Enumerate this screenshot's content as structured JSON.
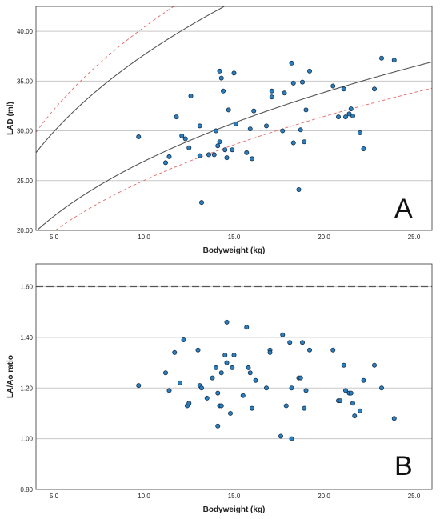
{
  "chart_data": [
    {
      "type": "scatter",
      "panel_label": "A",
      "xlabel": "Bodyweight (kg)",
      "ylabel": "LAD (ml)",
      "xlim": [
        4,
        26
      ],
      "ylim": [
        20,
        42.5
      ],
      "x_ticks": [
        5,
        10,
        15,
        20,
        25
      ],
      "x_tick_labels": [
        "5.0",
        "10.0",
        "15.0",
        "20.0",
        "25.0"
      ],
      "y_ticks": [
        20,
        25,
        30,
        35,
        40
      ],
      "y_tick_labels": [
        "20.00",
        "25.00",
        "30.00",
        "35.00",
        "40.00"
      ],
      "grid": "horizontal",
      "curves": [
        {
          "style": "solid",
          "color": "#555555",
          "a": 17.6,
          "b": 0.33
        },
        {
          "style": "solid",
          "color": "#555555",
          "a": 12.6,
          "b": 0.33
        },
        {
          "style": "dashed",
          "color": "#e36a6a",
          "a": 18.9,
          "b": 0.33
        },
        {
          "style": "dashed",
          "color": "#e36a6a",
          "a": 11.7,
          "b": 0.33
        }
      ],
      "points": [
        {
          "x": 9.7,
          "y": 29.4
        },
        {
          "x": 11.2,
          "y": 26.8
        },
        {
          "x": 11.4,
          "y": 27.4
        },
        {
          "x": 11.8,
          "y": 31.4
        },
        {
          "x": 12.1,
          "y": 29.5
        },
        {
          "x": 12.3,
          "y": 29.2
        },
        {
          "x": 12.5,
          "y": 28.3
        },
        {
          "x": 12.6,
          "y": 33.5
        },
        {
          "x": 13.1,
          "y": 27.5
        },
        {
          "x": 13.1,
          "y": 30.5
        },
        {
          "x": 13.2,
          "y": 22.8
        },
        {
          "x": 13.6,
          "y": 27.6
        },
        {
          "x": 13.9,
          "y": 27.6
        },
        {
          "x": 14.0,
          "y": 30.0
        },
        {
          "x": 14.1,
          "y": 28.5
        },
        {
          "x": 14.2,
          "y": 28.9
        },
        {
          "x": 14.2,
          "y": 36.0
        },
        {
          "x": 14.3,
          "y": 35.3
        },
        {
          "x": 14.4,
          "y": 34.0
        },
        {
          "x": 14.5,
          "y": 28.1
        },
        {
          "x": 14.6,
          "y": 27.3
        },
        {
          "x": 14.7,
          "y": 32.1
        },
        {
          "x": 14.9,
          "y": 28.1
        },
        {
          "x": 15.0,
          "y": 35.8
        },
        {
          "x": 15.1,
          "y": 30.7
        },
        {
          "x": 15.7,
          "y": 27.8
        },
        {
          "x": 15.9,
          "y": 30.2
        },
        {
          "x": 16.0,
          "y": 27.2
        },
        {
          "x": 16.1,
          "y": 32.0
        },
        {
          "x": 16.8,
          "y": 30.5
        },
        {
          "x": 17.1,
          "y": 34.0
        },
        {
          "x": 17.1,
          "y": 33.4
        },
        {
          "x": 17.7,
          "y": 30.0
        },
        {
          "x": 17.8,
          "y": 33.8
        },
        {
          "x": 18.2,
          "y": 36.8
        },
        {
          "x": 18.3,
          "y": 28.8
        },
        {
          "x": 18.3,
          "y": 34.8
        },
        {
          "x": 18.6,
          "y": 24.1
        },
        {
          "x": 18.7,
          "y": 30.1
        },
        {
          "x": 18.8,
          "y": 34.9
        },
        {
          "x": 18.9,
          "y": 28.9
        },
        {
          "x": 19.0,
          "y": 32.1
        },
        {
          "x": 19.2,
          "y": 36.0
        },
        {
          "x": 20.5,
          "y": 34.5
        },
        {
          "x": 20.8,
          "y": 31.4
        },
        {
          "x": 21.1,
          "y": 34.2
        },
        {
          "x": 21.2,
          "y": 31.4
        },
        {
          "x": 21.4,
          "y": 31.7
        },
        {
          "x": 21.5,
          "y": 32.2
        },
        {
          "x": 21.6,
          "y": 31.5
        },
        {
          "x": 22.0,
          "y": 29.8
        },
        {
          "x": 22.2,
          "y": 28.2
        },
        {
          "x": 22.8,
          "y": 34.2
        },
        {
          "x": 23.2,
          "y": 37.3
        },
        {
          "x": 23.9,
          "y": 37.1
        }
      ]
    },
    {
      "type": "scatter",
      "panel_label": "B",
      "xlabel": "Bodyweight (kg)",
      "ylabel": "LA/Ao ratio",
      "xlim": [
        4,
        26
      ],
      "ylim": [
        0.8,
        1.69
      ],
      "x_ticks": [
        5,
        10,
        15,
        20,
        25
      ],
      "x_tick_labels": [
        "5.0",
        "10.0",
        "15.0",
        "20.0",
        "25.0"
      ],
      "y_ticks": [
        0.8,
        1.0,
        1.2,
        1.4,
        1.6
      ],
      "y_tick_labels": [
        "0.80",
        "1.00",
        "1.20",
        "1.40",
        "1.60"
      ],
      "grid": "horizontal",
      "reference_line": {
        "y": 1.6,
        "style": "dashed",
        "color": "#555555"
      },
      "points": [
        {
          "x": 9.7,
          "y": 1.21
        },
        {
          "x": 11.2,
          "y": 1.26
        },
        {
          "x": 11.4,
          "y": 1.19
        },
        {
          "x": 11.7,
          "y": 1.34
        },
        {
          "x": 12.0,
          "y": 1.22
        },
        {
          "x": 12.2,
          "y": 1.39
        },
        {
          "x": 12.4,
          "y": 1.13
        },
        {
          "x": 12.5,
          "y": 1.14
        },
        {
          "x": 13.0,
          "y": 1.35
        },
        {
          "x": 13.1,
          "y": 1.21
        },
        {
          "x": 13.2,
          "y": 1.2
        },
        {
          "x": 13.5,
          "y": 1.16
        },
        {
          "x": 13.8,
          "y": 1.24
        },
        {
          "x": 14.0,
          "y": 1.28
        },
        {
          "x": 14.1,
          "y": 1.18
        },
        {
          "x": 14.1,
          "y": 1.05
        },
        {
          "x": 14.2,
          "y": 1.13
        },
        {
          "x": 14.3,
          "y": 1.13
        },
        {
          "x": 14.3,
          "y": 1.26
        },
        {
          "x": 14.5,
          "y": 1.33
        },
        {
          "x": 14.6,
          "y": 1.46
        },
        {
          "x": 14.6,
          "y": 1.3
        },
        {
          "x": 14.8,
          "y": 1.1
        },
        {
          "x": 14.9,
          "y": 1.28
        },
        {
          "x": 15.0,
          "y": 1.33
        },
        {
          "x": 15.5,
          "y": 1.17
        },
        {
          "x": 15.7,
          "y": 1.44
        },
        {
          "x": 15.8,
          "y": 1.28
        },
        {
          "x": 15.9,
          "y": 1.26
        },
        {
          "x": 16.0,
          "y": 1.12
        },
        {
          "x": 16.2,
          "y": 1.23
        },
        {
          "x": 16.8,
          "y": 1.2
        },
        {
          "x": 17.0,
          "y": 1.35
        },
        {
          "x": 17.0,
          "y": 1.34
        },
        {
          "x": 17.6,
          "y": 1.01
        },
        {
          "x": 17.7,
          "y": 1.41
        },
        {
          "x": 17.9,
          "y": 1.13
        },
        {
          "x": 18.1,
          "y": 1.38
        },
        {
          "x": 18.2,
          "y": 1.0
        },
        {
          "x": 18.2,
          "y": 1.2
        },
        {
          "x": 18.6,
          "y": 1.24
        },
        {
          "x": 18.7,
          "y": 1.24
        },
        {
          "x": 18.8,
          "y": 1.38
        },
        {
          "x": 18.9,
          "y": 1.12
        },
        {
          "x": 19.0,
          "y": 1.19
        },
        {
          "x": 19.2,
          "y": 1.35
        },
        {
          "x": 20.5,
          "y": 1.35
        },
        {
          "x": 20.8,
          "y": 1.15
        },
        {
          "x": 20.9,
          "y": 1.15
        },
        {
          "x": 21.1,
          "y": 1.29
        },
        {
          "x": 21.2,
          "y": 1.19
        },
        {
          "x": 21.4,
          "y": 1.18
        },
        {
          "x": 21.5,
          "y": 1.18
        },
        {
          "x": 21.6,
          "y": 1.14
        },
        {
          "x": 21.7,
          "y": 1.09
        },
        {
          "x": 22.0,
          "y": 1.11
        },
        {
          "x": 22.2,
          "y": 1.23
        },
        {
          "x": 22.8,
          "y": 1.29
        },
        {
          "x": 23.2,
          "y": 1.2
        },
        {
          "x": 23.9,
          "y": 1.08
        }
      ]
    }
  ]
}
